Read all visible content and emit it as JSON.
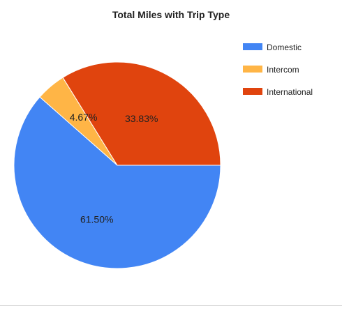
{
  "chart_data": {
    "type": "pie",
    "title": "Total Miles with Trip Type",
    "categories": [
      "Domestic",
      "Intercom",
      "International"
    ],
    "values": [
      61.5,
      4.67,
      33.83
    ],
    "labels": [
      "61.50%",
      "4.67%",
      "33.83%"
    ],
    "colors": [
      "#4285F4",
      "#FFB546",
      "#E0440E"
    ],
    "legend_position": "right"
  }
}
